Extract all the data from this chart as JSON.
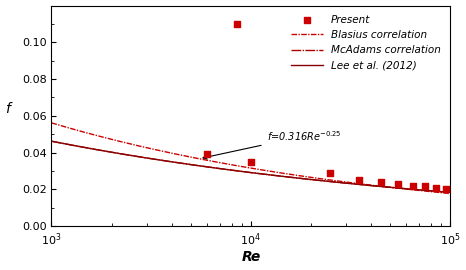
{
  "title": "",
  "xlabel": "Re",
  "ylabel": "f",
  "xlim": [
    1000,
    100000
  ],
  "ylim": [
    0,
    0.12
  ],
  "yticks": [
    0,
    0.02,
    0.04,
    0.06,
    0.08,
    0.1
  ],
  "present_x": [
    6000,
    8500,
    10000,
    25000,
    35000,
    45000,
    55000,
    65000,
    75000,
    85000,
    95000
  ],
  "present_y": [
    0.039,
    0.11,
    0.035,
    0.029,
    0.025,
    0.024,
    0.023,
    0.022,
    0.022,
    0.021,
    0.02
  ],
  "present_color": "#cc0000",
  "blasius_coeff": 0.316,
  "blasius_exp": -0.25,
  "mcadams_coeff": 0.184,
  "mcadams_exp": -0.2,
  "lee_coeff": 0.184,
  "lee_exp": -0.2,
  "blasius_color": "#cc0000",
  "mcadams_color": "#aa0000",
  "lee_color": "#880000",
  "annotation_text": "$f$=0.316$Re^{-0.25}$",
  "legend_fontsize": 7.5,
  "axis_label_fontsize": 10
}
